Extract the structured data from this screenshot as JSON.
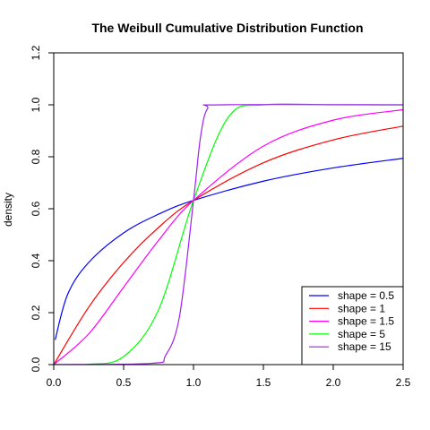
{
  "chart_data": {
    "type": "line",
    "title": "The Weibull Cumulative Distribution Function",
    "xlabel": "",
    "ylabel": "density",
    "xlim": [
      0,
      2.5
    ],
    "ylim": [
      0,
      1.2
    ],
    "x_ticks": [
      "0.0",
      "0.5",
      "1.0",
      "1.5",
      "2.0",
      "2.5"
    ],
    "y_ticks": [
      "0.0",
      "0.2",
      "0.4",
      "0.6",
      "0.8",
      "1.0",
      "1.2"
    ],
    "grid": false,
    "legend_position": "bottom-right",
    "series": [
      {
        "name": "shape = 0.5",
        "color": "#0000ff",
        "x": [
          0.01,
          0.1,
          0.25,
          0.5,
          0.75,
          1.0,
          1.5,
          2.0,
          2.5
        ],
        "values": [
          0.095,
          0.271,
          0.393,
          0.507,
          0.579,
          0.632,
          0.706,
          0.757,
          0.794
        ]
      },
      {
        "name": "shape = 1",
        "color": "#ff0000",
        "x": [
          0.0,
          0.25,
          0.5,
          0.75,
          1.0,
          1.5,
          2.0,
          2.5
        ],
        "values": [
          0.0,
          0.221,
          0.393,
          0.528,
          0.632,
          0.777,
          0.865,
          0.918
        ]
      },
      {
        "name": "shape = 1.5",
        "color": "#ff00ff",
        "x": [
          0.0,
          0.25,
          0.5,
          0.75,
          1.0,
          1.5,
          2.0,
          2.5
        ],
        "values": [
          0.0,
          0.118,
          0.298,
          0.478,
          0.632,
          0.841,
          0.941,
          0.981
        ]
      },
      {
        "name": "shape = 5",
        "color": "#00ff00",
        "x": [
          0.0,
          0.25,
          0.5,
          0.75,
          1.0,
          1.25,
          1.5,
          2.0,
          2.5
        ],
        "values": [
          0.0,
          0.001,
          0.031,
          0.211,
          0.632,
          0.953,
          1.0,
          1.0,
          1.0
        ]
      },
      {
        "name": "shape = 15",
        "color": "#a020f0",
        "x": [
          0.0,
          0.7,
          0.8,
          0.9,
          1.0,
          1.05,
          1.1,
          1.2,
          2.5
        ],
        "values": [
          0.0,
          0.005,
          0.035,
          0.186,
          0.632,
          0.875,
          0.985,
          1.0,
          1.0
        ]
      }
    ]
  }
}
